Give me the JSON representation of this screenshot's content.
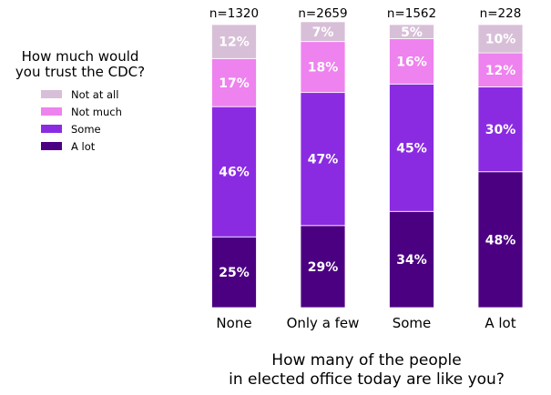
{
  "chart_data": {
    "type": "bar",
    "stacked": true,
    "categories": [
      "None",
      "Only a few",
      "Some",
      "A lot"
    ],
    "counts": [
      "n=1320",
      "n=2659",
      "n=1562",
      "n=228"
    ],
    "series": [
      {
        "name": "A lot",
        "color": "#4b0082",
        "values": [
          25,
          29,
          34,
          48
        ]
      },
      {
        "name": "Some",
        "color": "#8a2be2",
        "values": [
          46,
          47,
          45,
          30
        ]
      },
      {
        "name": "Not much",
        "color": "#ee82ee",
        "values": [
          17,
          18,
          16,
          12
        ]
      },
      {
        "name": "Not at all",
        "color": "#d8bfd8",
        "values": [
          12,
          7,
          5,
          10
        ]
      }
    ],
    "ylim": [
      0,
      100
    ],
    "value_suffix": "%",
    "legend": {
      "title_line1": "How much would",
      "title_line2": "you trust the CDC?",
      "placement": "left",
      "order": [
        "Not at all",
        "Not much",
        "Some",
        "A lot"
      ]
    },
    "xlabel_line1": "How many of the people",
    "xlabel_line2": "in elected office today are like you?",
    "grid": false
  }
}
